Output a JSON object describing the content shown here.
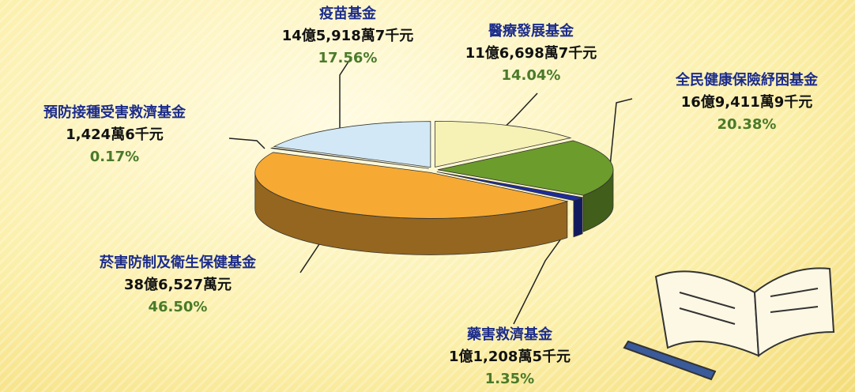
{
  "chart_data": {
    "type": "pie",
    "categories": [
      "醫療發展基金",
      "全民健康保險紓困基金",
      "藥害救濟基金",
      "菸害防制及衛生保健基金",
      "預防接種受害救濟基金",
      "疫苗基金"
    ],
    "amounts": [
      "11億6,698萬7千元",
      "16億9,411萬9千元",
      "1億1,208萬5千元",
      "38億6,527萬元",
      "1,424萬6千元",
      "14億5,918萬7千元"
    ],
    "values": [
      14.04,
      20.38,
      1.35,
      46.5,
      0.17,
      17.56
    ],
    "value_labels": [
      "14.04%",
      "20.38%",
      "1.35%",
      "46.50%",
      "0.17%",
      "17.56%"
    ],
    "colors": [
      "#f6f1b4",
      "#6c9c2c",
      "#1c2c9c",
      "#f6aa34",
      "#7c1c2c",
      "#d2e8f6"
    ]
  }
}
